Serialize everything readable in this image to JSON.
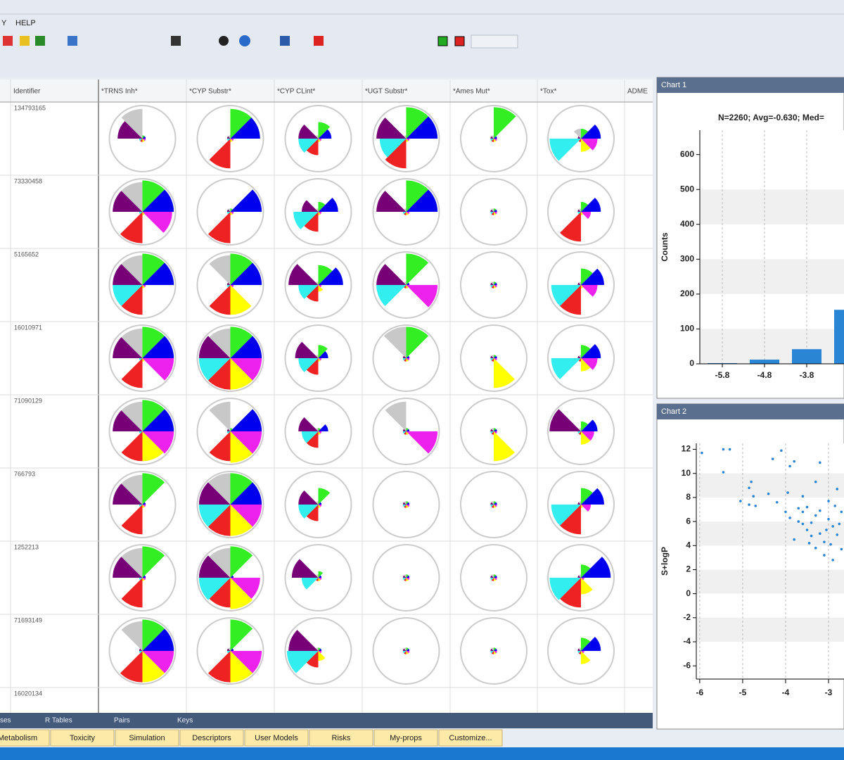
{
  "menu": [
    "Y",
    "HELP"
  ],
  "table": {
    "headers": [
      "Identifier",
      "*TRNS Inh*",
      "*CYP Substr*",
      "*CYP CLint*",
      "*UGT Substr*",
      "*Ames Mut*",
      "*Tox*",
      "ADME"
    ],
    "glyph_colors": [
      "#33ee22",
      "#0000ee",
      "#ee22ee",
      "#ffff00",
      "#ee2222",
      "#33eeee",
      "#770077",
      "#c8c8c8"
    ],
    "rows": [
      {
        "id": "134793165",
        "glyphs": [
          [
            0.1,
            0.1,
            0.1,
            0.1,
            0.1,
            0.1,
            0.75,
            0.9
          ],
          [
            0.9,
            0.9,
            0.1,
            0.1,
            0.9,
            0.1,
            0.1,
            0.1
          ],
          [
            0.5,
            0.4,
            0.1,
            0.1,
            0.5,
            0.6,
            0.6,
            0.1
          ],
          [
            0.95,
            0.95,
            0.1,
            0.1,
            0.9,
            0.8,
            0.9,
            0.1
          ],
          [
            0.95,
            0.1,
            0.1,
            0.1,
            0.1,
            0.1,
            0.1,
            0.1
          ],
          [
            0.3,
            0.6,
            0.5,
            0.4,
            0.1,
            0.95,
            0.1,
            0.3
          ]
        ]
      },
      {
        "id": "73330458",
        "glyphs": [
          [
            0.95,
            0.95,
            0.9,
            0.1,
            0.95,
            0.1,
            0.9,
            0.9
          ],
          [
            0.1,
            0.95,
            0.1,
            0.1,
            0.95,
            0.1,
            0.1,
            0.1
          ],
          [
            0.3,
            0.6,
            0.1,
            0.1,
            0.6,
            0.75,
            0.5,
            0.1
          ],
          [
            0.95,
            0.95,
            0.1,
            0.1,
            0.1,
            0.1,
            0.9,
            0.1
          ],
          [
            0.1,
            0.1,
            0.1,
            0.1,
            0.1,
            0.1,
            0.1,
            0.1
          ],
          [
            0.3,
            0.6,
            0.3,
            0.1,
            0.9,
            0.1,
            0.1,
            0.1
          ]
        ]
      },
      {
        "id": "5165652",
        "glyphs": [
          [
            0.95,
            0.95,
            0.1,
            0.1,
            0.9,
            0.9,
            0.9,
            0.9
          ],
          [
            0.95,
            0.95,
            0.1,
            0.9,
            0.9,
            0.1,
            0.1,
            0.9
          ],
          [
            0.6,
            0.75,
            0.1,
            0.2,
            0.5,
            0.6,
            0.9,
            0.1
          ],
          [
            0.95,
            0.1,
            0.95,
            0.1,
            0.1,
            0.9,
            0.9,
            0.1
          ],
          [
            0.1,
            0.1,
            0.1,
            0.1,
            0.1,
            0.1,
            0.1,
            0.1
          ],
          [
            0.5,
            0.7,
            0.5,
            0.1,
            0.9,
            0.9,
            0.1,
            0.1
          ]
        ]
      },
      {
        "id": "16010971",
        "glyphs": [
          [
            0.95,
            0.95,
            0.95,
            0.1,
            0.9,
            0.1,
            0.9,
            0.9
          ],
          [
            0.95,
            0.95,
            0.95,
            0.95,
            0.95,
            0.95,
            0.95,
            0.9
          ],
          [
            0.4,
            0.3,
            0.1,
            0.1,
            0.5,
            0.6,
            0.7,
            0.1
          ],
          [
            0.95,
            0.1,
            0.1,
            0.1,
            0.1,
            0.1,
            0.1,
            0.95
          ],
          [
            0.1,
            0.1,
            0.1,
            0.9,
            0.1,
            0.1,
            0.1,
            0.1
          ],
          [
            0.4,
            0.6,
            0.5,
            0.4,
            0.1,
            0.9,
            0.1,
            0.1
          ]
        ]
      },
      {
        "id": "71090129",
        "glyphs": [
          [
            0.95,
            0.95,
            0.95,
            0.9,
            0.9,
            0.1,
            0.9,
            0.9
          ],
          [
            0.1,
            0.95,
            0.95,
            0.95,
            0.9,
            0.1,
            0.1,
            0.9
          ],
          [
            0.1,
            0.3,
            0.1,
            0.1,
            0.5,
            0.5,
            0.6,
            0.1
          ],
          [
            0.1,
            0.1,
            0.95,
            0.1,
            0.1,
            0.1,
            0.1,
            0.9
          ],
          [
            0.1,
            0.1,
            0.1,
            0.9,
            0.1,
            0.1,
            0.1,
            0.1
          ],
          [
            0.3,
            0.5,
            0.4,
            0.4,
            0.1,
            0.1,
            0.95,
            0.1
          ]
        ]
      },
      {
        "id": "766793",
        "glyphs": [
          [
            0.95,
            0.1,
            0.1,
            0.1,
            0.9,
            0.1,
            0.9,
            0.9
          ],
          [
            0.95,
            0.95,
            0.95,
            0.95,
            0.95,
            0.95,
            0.95,
            0.95
          ],
          [
            0.5,
            0.1,
            0.1,
            0.1,
            0.5,
            0.6,
            0.6,
            0.1
          ],
          [
            0.1,
            0.1,
            0.1,
            0.1,
            0.1,
            0.1,
            0.1,
            0.1
          ],
          [
            0.1,
            0.1,
            0.1,
            0.1,
            0.1,
            0.1,
            0.1,
            0.1
          ],
          [
            0.5,
            0.7,
            0.3,
            0.1,
            0.9,
            0.9,
            0.1,
            0.1
          ]
        ]
      },
      {
        "id": "1252213",
        "glyphs": [
          [
            0.95,
            0.1,
            0.1,
            0.1,
            0.9,
            0.1,
            0.9,
            0.9
          ],
          [
            0.95,
            0.1,
            0.9,
            0.95,
            0.9,
            0.95,
            0.95,
            0.9
          ],
          [
            0.2,
            0.1,
            0.1,
            0.1,
            0.1,
            0.5,
            0.8,
            0.1
          ],
          [
            0.1,
            0.1,
            0.1,
            0.1,
            0.1,
            0.1,
            0.1,
            0.1
          ],
          [
            0.1,
            0.1,
            0.1,
            0.1,
            0.1,
            0.1,
            0.1,
            0.1
          ],
          [
            0.4,
            0.9,
            0.1,
            0.5,
            0.9,
            0.95,
            0.1,
            0.1
          ]
        ]
      },
      {
        "id": "71693149",
        "glyphs": [
          [
            0.95,
            0.95,
            0.95,
            0.95,
            0.95,
            0.1,
            0.1,
            0.9
          ],
          [
            0.95,
            0.1,
            0.95,
            0.95,
            0.95,
            0.1,
            0.1,
            0.1
          ],
          [
            0.1,
            0.1,
            0.1,
            0.3,
            0.5,
            0.95,
            0.9,
            0.1
          ],
          [
            0.1,
            0.1,
            0.1,
            0.1,
            0.1,
            0.1,
            0.1,
            0.1
          ],
          [
            0.1,
            0.1,
            0.1,
            0.1,
            0.1,
            0.1,
            0.1,
            0.1
          ],
          [
            0.4,
            0.6,
            0.1,
            0.4,
            0.1,
            0.1,
            0.1,
            0.1
          ]
        ]
      },
      {
        "id": "16020134"
      }
    ]
  },
  "chart_data": [
    {
      "type": "bar",
      "title": "Chart 1",
      "subtitle": "N=2260; Avg=-0.630; Med=",
      "ylabel": "Counts",
      "color": "#2a86d4",
      "categories": [
        "-5.8",
        "-4.8",
        "-3.8",
        null
      ],
      "values": [
        2,
        12,
        42,
        155
      ],
      "ylim": [
        0,
        670
      ],
      "yticks": [
        0,
        100,
        200,
        300,
        400,
        500,
        600
      ],
      "grid": true
    },
    {
      "type": "scatter",
      "title": "Chart 2",
      "ylabel": "S+logP",
      "color": "#2a86d4",
      "x": [
        -5.95,
        -5.45,
        -5.3,
        -5.45,
        -4.8,
        -4.85,
        -4.75,
        -4.7,
        -5.05,
        -4.85,
        -4.3,
        -4.1,
        -3.9,
        -3.8,
        -3.2,
        -3.3,
        -4.0,
        -3.9,
        -3.7,
        -3.6,
        -3.5,
        -3.4,
        -3.3,
        -3.2,
        -3.1,
        -3.0,
        -2.9,
        -2.8,
        -2.7,
        -3.5,
        -3.6,
        -3.0,
        -2.8,
        -2.7,
        -3.3,
        -3.1,
        -2.9,
        -3.8,
        -3.6,
        -3.4,
        -3.2,
        -3.05,
        -2.95,
        -2.75,
        -3.45,
        -3.7,
        -4.2,
        -4.4,
        -3.95,
        -2.85
      ],
      "y": [
        11.7,
        12,
        12,
        10.1,
        9.3,
        8.8,
        8.1,
        7.3,
        7.7,
        7.4,
        11.2,
        11.9,
        10.6,
        11,
        10.9,
        9.3,
        6.8,
        6.3,
        6.0,
        5.8,
        5.3,
        4.8,
        6.5,
        5.0,
        4.3,
        6.2,
        5.6,
        4.9,
        6.8,
        7.2,
        8.1,
        7.7,
        8.7,
        3.7,
        3.8,
        3.2,
        2.8,
        4.5,
        6.8,
        5.9,
        6.9,
        5.3,
        4.1,
        5.8,
        4.2,
        7.1,
        7.6,
        8.3,
        8.4,
        7.3
      ],
      "xlim": [
        -6.08,
        -2.64
      ],
      "ylim": [
        -7.1,
        12.5
      ],
      "xticks": [
        -6,
        -5,
        -4,
        -3
      ],
      "yticks": [
        -6,
        -4,
        -2,
        0,
        2,
        4,
        6,
        8,
        10,
        12
      ],
      "grid": true
    }
  ],
  "bottom_tabs": [
    "ses",
    "R Tables",
    "Pairs",
    "Keys"
  ],
  "buttons": [
    "Metabolism",
    "Toxicity",
    "Simulation",
    "Descriptors",
    "User Models",
    "Risks",
    "My-props",
    "Customize..."
  ]
}
